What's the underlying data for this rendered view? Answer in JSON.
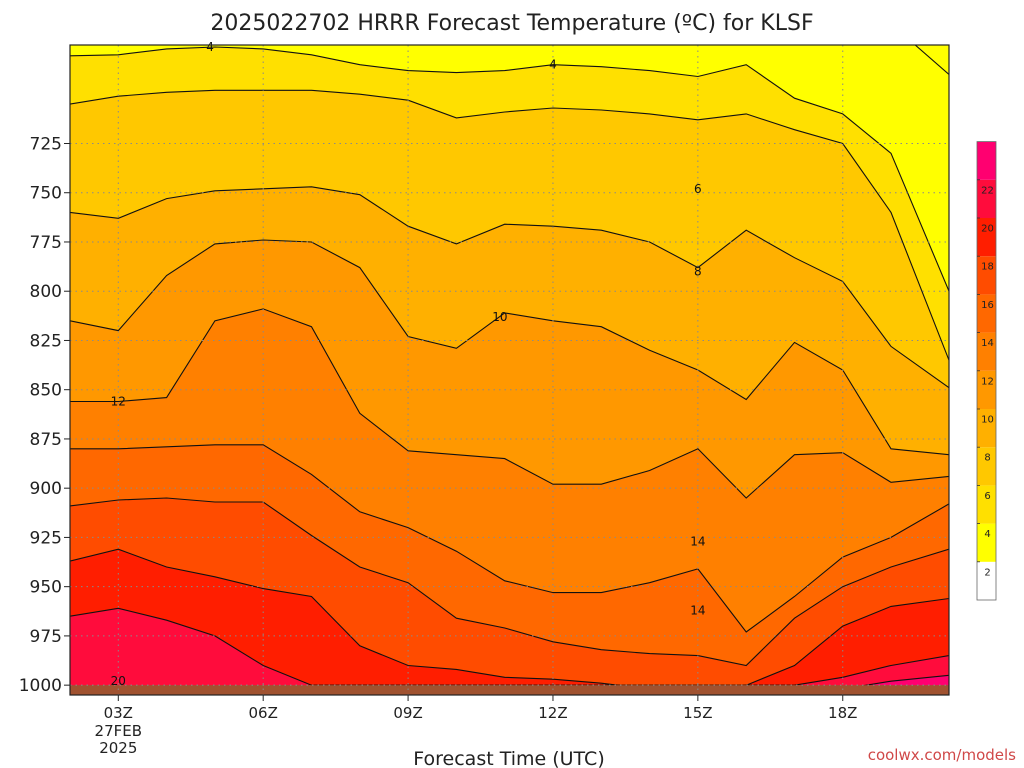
{
  "chart_data": {
    "type": "heatmap",
    "title": "2025022702 HRRR Forecast Temperature (ºC) for KLSF",
    "xlabel": "Forecast Time (UTC)",
    "ylabel": "",
    "credit": "coolwx.com/models",
    "x_hours": [
      2,
      20.2
    ],
    "y_pressure": [
      675,
      1005
    ],
    "x_ticks": [
      {
        "hour": 3,
        "label": "03Z",
        "sub": [
          "27FEB",
          "2025"
        ]
      },
      {
        "hour": 6,
        "label": "06Z"
      },
      {
        "hour": 9,
        "label": "09Z"
      },
      {
        "hour": 12,
        "label": "12Z"
      },
      {
        "hour": 15,
        "label": "15Z"
      },
      {
        "hour": 18,
        "label": "18Z"
      }
    ],
    "y_ticks": [
      725,
      750,
      775,
      800,
      825,
      850,
      875,
      900,
      925,
      950,
      975,
      1000
    ],
    "colorbar": {
      "levels": [
        2,
        4,
        6,
        8,
        10,
        12,
        14,
        16,
        18,
        20,
        22
      ],
      "colors": [
        "#ffffff",
        "#ffff00",
        "#ffe000",
        "#ffc800",
        "#ffb000",
        "#ff9800",
        "#ff8000",
        "#ff6800",
        "#ff4c00",
        "#ff1e00",
        "#ff0c3c",
        "#ff0070"
      ]
    },
    "bands": [
      {
        "label": "T < 2",
        "color": "#ffffff",
        "upper": [
          [
            18.5,
            675
          ],
          [
            19.5,
            675
          ],
          [
            20.2,
            690
          ],
          [
            20.2,
            675
          ]
        ]
      },
      {
        "label": "2-4",
        "color": "#ffff00",
        "upper": [
          [
            2,
            675
          ],
          [
            20.2,
            675
          ]
        ]
      },
      {
        "label": "4-6",
        "color": "#ffe000",
        "upper": [
          [
            2,
            680.5
          ],
          [
            3,
            680
          ],
          [
            4,
            677
          ],
          [
            5,
            676
          ],
          [
            6,
            677
          ],
          [
            7,
            680
          ],
          [
            8,
            685
          ],
          [
            9,
            688
          ],
          [
            10,
            689
          ],
          [
            11,
            688
          ],
          [
            12,
            685
          ],
          [
            13,
            686
          ],
          [
            14,
            688
          ],
          [
            15,
            691
          ],
          [
            16,
            685
          ],
          [
            17,
            702
          ],
          [
            18,
            710
          ],
          [
            19,
            730
          ],
          [
            20.2,
            800
          ]
        ]
      },
      {
        "label": "6-8",
        "color": "#ffc800",
        "upper": [
          [
            2,
            705
          ],
          [
            3,
            701
          ],
          [
            4,
            699
          ],
          [
            5,
            698
          ],
          [
            6,
            698
          ],
          [
            7,
            698
          ],
          [
            8,
            700
          ],
          [
            9,
            703
          ],
          [
            10,
            712
          ],
          [
            11,
            709
          ],
          [
            12,
            707
          ],
          [
            13,
            708
          ],
          [
            14,
            710
          ],
          [
            15,
            713
          ],
          [
            16,
            710
          ],
          [
            17,
            718
          ],
          [
            18,
            725
          ],
          [
            19,
            760
          ],
          [
            20.2,
            835
          ]
        ]
      },
      {
        "label": "8-10",
        "color": "#ffb000",
        "upper": [
          [
            2,
            760
          ],
          [
            3,
            763
          ],
          [
            4,
            753
          ],
          [
            5,
            749
          ],
          [
            6,
            748
          ],
          [
            7,
            747
          ],
          [
            8,
            751
          ],
          [
            9,
            767
          ],
          [
            10,
            776
          ],
          [
            11,
            766
          ],
          [
            12,
            767
          ],
          [
            13,
            769
          ],
          [
            14,
            775
          ],
          [
            15,
            788
          ],
          [
            16,
            769
          ],
          [
            17,
            783
          ],
          [
            18,
            795
          ],
          [
            19,
            828
          ],
          [
            20.2,
            849
          ]
        ]
      },
      {
        "label": "10-12",
        "color": "#ff9800",
        "upper": [
          [
            2,
            815
          ],
          [
            3,
            820
          ],
          [
            4,
            792
          ],
          [
            5,
            776
          ],
          [
            6,
            774
          ],
          [
            7,
            775
          ],
          [
            8,
            788
          ],
          [
            9,
            823
          ],
          [
            10,
            829
          ],
          [
            11,
            811
          ],
          [
            12,
            815
          ],
          [
            13,
            818
          ],
          [
            14,
            830
          ],
          [
            15,
            840
          ],
          [
            16,
            855
          ],
          [
            17,
            826
          ],
          [
            18,
            840
          ],
          [
            19,
            880
          ],
          [
            20.2,
            883
          ]
        ]
      },
      {
        "label": "12-14",
        "color": "#ff8000",
        "upper": [
          [
            2,
            856
          ],
          [
            3,
            856
          ],
          [
            4,
            854
          ],
          [
            5,
            815
          ],
          [
            6,
            809
          ],
          [
            7,
            818
          ],
          [
            8,
            862
          ],
          [
            9,
            881
          ],
          [
            10,
            883
          ],
          [
            11,
            885
          ],
          [
            12,
            898
          ],
          [
            13,
            898
          ],
          [
            14,
            891
          ],
          [
            15,
            880
          ],
          [
            16,
            905
          ],
          [
            17,
            883
          ],
          [
            18,
            882
          ],
          [
            19,
            897
          ],
          [
            20.2,
            894
          ]
        ]
      },
      {
        "label": "14-16",
        "color": "#ff6800",
        "upper": [
          [
            2,
            880
          ],
          [
            3,
            880
          ],
          [
            4,
            879
          ],
          [
            5,
            878
          ],
          [
            6,
            878
          ],
          [
            7,
            893
          ],
          [
            8,
            912
          ],
          [
            9,
            920
          ],
          [
            10,
            932
          ],
          [
            11,
            947
          ],
          [
            12,
            953
          ],
          [
            13,
            953
          ],
          [
            14,
            948
          ],
          [
            15,
            941
          ],
          [
            16,
            973
          ],
          [
            17,
            955
          ],
          [
            18,
            935
          ],
          [
            19,
            925
          ],
          [
            20.2,
            908
          ]
        ]
      },
      {
        "label": "16-18",
        "color": "#ff4c00",
        "upper": [
          [
            2,
            909
          ],
          [
            3,
            906
          ],
          [
            4,
            905
          ],
          [
            5,
            907
          ],
          [
            6,
            907
          ],
          [
            7,
            924
          ],
          [
            8,
            940
          ],
          [
            9,
            948
          ],
          [
            10,
            966
          ],
          [
            11,
            971
          ],
          [
            12,
            978
          ],
          [
            13,
            982
          ],
          [
            14,
            984
          ],
          [
            15,
            985
          ],
          [
            16,
            990
          ],
          [
            17,
            966
          ],
          [
            18,
            950
          ],
          [
            19,
            940
          ],
          [
            20.2,
            931
          ]
        ]
      },
      {
        "label": "18-20",
        "color": "#ff1e00",
        "upper": [
          [
            2,
            937
          ],
          [
            3,
            931
          ],
          [
            4,
            940
          ],
          [
            5,
            945
          ],
          [
            6,
            951
          ],
          [
            7,
            955
          ],
          [
            8,
            980
          ],
          [
            9,
            990
          ],
          [
            10,
            992
          ],
          [
            11,
            996
          ],
          [
            12,
            997
          ],
          [
            13,
            999
          ],
          [
            14,
            1002
          ],
          [
            15,
            1002
          ],
          [
            16,
            1000
          ],
          [
            17,
            990
          ],
          [
            18,
            970
          ],
          [
            19,
            960
          ],
          [
            20.2,
            956
          ]
        ]
      },
      {
        "label": "20-22",
        "color": "#ff0c3c",
        "upper": [
          [
            2,
            965
          ],
          [
            3,
            961
          ],
          [
            4,
            967
          ],
          [
            5,
            975
          ],
          [
            6,
            990
          ],
          [
            7,
            1000
          ],
          [
            8,
            1005
          ],
          [
            9,
            1005
          ],
          [
            10,
            1005
          ],
          [
            11,
            1005
          ],
          [
            12,
            1005
          ],
          [
            13,
            1005
          ],
          [
            14,
            1005
          ],
          [
            15,
            1005
          ],
          [
            16,
            1005
          ],
          [
            17,
            1000
          ],
          [
            18,
            996
          ],
          [
            19,
            990
          ],
          [
            20.2,
            985
          ]
        ]
      },
      {
        "label": "T > 22",
        "color": "#ff0070",
        "upper": [
          [
            2,
            1005
          ],
          [
            3,
            1005
          ],
          [
            4,
            1004
          ],
          [
            5,
            1005
          ],
          [
            6,
            1005
          ],
          [
            7,
            1005
          ],
          [
            8,
            1005
          ],
          [
            9,
            1005
          ],
          [
            10,
            1005
          ],
          [
            11,
            1005
          ],
          [
            12,
            1005
          ],
          [
            13,
            1005
          ],
          [
            14,
            1005
          ],
          [
            15,
            1005
          ],
          [
            16,
            1005
          ],
          [
            17,
            1005
          ],
          [
            18,
            1002
          ],
          [
            19,
            998
          ],
          [
            20.2,
            995
          ]
        ]
      }
    ],
    "contour_labels": [
      {
        "text": "4",
        "hour": 4.9,
        "p": 676
      },
      {
        "text": "4",
        "hour": 12.0,
        "p": 685
      },
      {
        "text": "6",
        "hour": 15.0,
        "p": 748
      },
      {
        "text": "8",
        "hour": 15.0,
        "p": 790
      },
      {
        "text": "10",
        "hour": 10.9,
        "p": 813
      },
      {
        "text": "12",
        "hour": 3.0,
        "p": 856
      },
      {
        "text": "14",
        "hour": 15.0,
        "p": 927
      },
      {
        "text": "14",
        "hour": 15.0,
        "p": 962
      },
      {
        "text": "20",
        "hour": 3.0,
        "p": 998
      }
    ],
    "ground": {
      "color": "#a05230",
      "p_top": 1000
    }
  }
}
